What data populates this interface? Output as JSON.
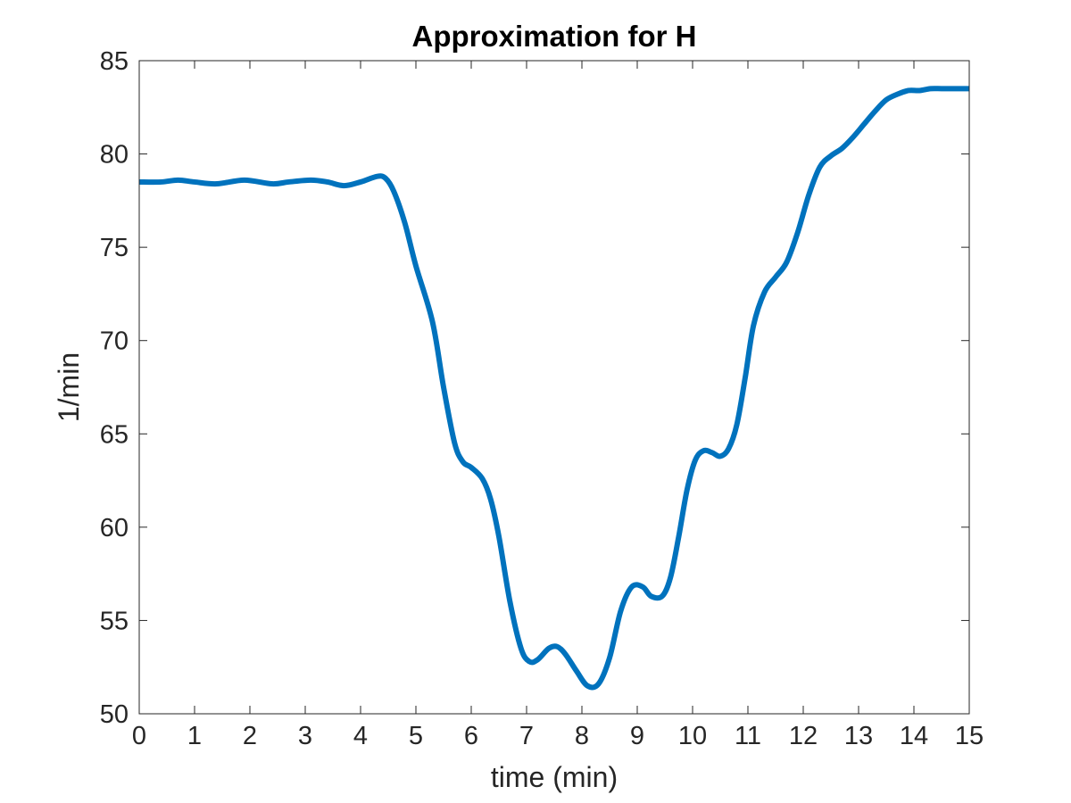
{
  "chart_data": {
    "type": "line",
    "title": "Approximation for H",
    "xlabel": "time (min)",
    "ylabel": "1/min",
    "xlim": [
      0,
      15
    ],
    "ylim": [
      50,
      85
    ],
    "xticks": [
      0,
      1,
      2,
      3,
      4,
      5,
      6,
      7,
      8,
      9,
      10,
      11,
      12,
      13,
      14,
      15
    ],
    "yticks": [
      50,
      55,
      60,
      65,
      70,
      75,
      80,
      85
    ],
    "xtick_labels": [
      "0",
      "1",
      "2",
      "3",
      "4",
      "5",
      "6",
      "7",
      "8",
      "9",
      "10",
      "11",
      "12",
      "13",
      "14",
      "15"
    ],
    "ytick_labels": [
      "50",
      "55",
      "60",
      "65",
      "70",
      "75",
      "80",
      "85"
    ],
    "grid": false,
    "box": true,
    "series": [
      {
        "color": "#0072BD",
        "x": [
          0,
          0.4,
          0.7,
          1.0,
          1.4,
          1.9,
          2.4,
          2.7,
          3.1,
          3.4,
          3.7,
          4.0,
          4.3,
          4.45,
          4.6,
          4.8,
          5.0,
          5.3,
          5.5,
          5.7,
          5.85,
          6.0,
          6.2,
          6.35,
          6.5,
          6.7,
          6.9,
          7.05,
          7.2,
          7.4,
          7.55,
          7.7,
          7.9,
          8.1,
          8.3,
          8.5,
          8.7,
          8.9,
          9.1,
          9.25,
          9.45,
          9.6,
          9.75,
          9.9,
          10.05,
          10.2,
          10.35,
          10.5,
          10.65,
          10.8,
          10.95,
          11.1,
          11.3,
          11.5,
          11.7,
          11.9,
          12.1,
          12.3,
          12.5,
          12.7,
          12.9,
          13.1,
          13.3,
          13.5,
          13.7,
          13.9,
          14.1,
          14.3,
          14.5,
          14.7,
          15.0
        ],
        "y": [
          78.5,
          78.5,
          78.6,
          78.5,
          78.4,
          78.6,
          78.4,
          78.5,
          78.6,
          78.5,
          78.3,
          78.5,
          78.8,
          78.7,
          78.0,
          76.3,
          74.0,
          71.0,
          67.5,
          64.5,
          63.5,
          63.2,
          62.6,
          61.5,
          59.5,
          56.0,
          53.5,
          52.8,
          52.9,
          53.5,
          53.6,
          53.2,
          52.3,
          51.5,
          51.6,
          53.0,
          55.5,
          56.8,
          56.8,
          56.3,
          56.3,
          57.3,
          59.5,
          62.0,
          63.6,
          64.1,
          64.0,
          63.8,
          64.2,
          65.5,
          68.0,
          70.8,
          72.6,
          73.4,
          74.2,
          75.8,
          77.8,
          79.3,
          79.9,
          80.3,
          80.9,
          81.6,
          82.3,
          82.9,
          83.2,
          83.4,
          83.4,
          83.5,
          83.5,
          83.5,
          83.5
        ]
      }
    ]
  }
}
